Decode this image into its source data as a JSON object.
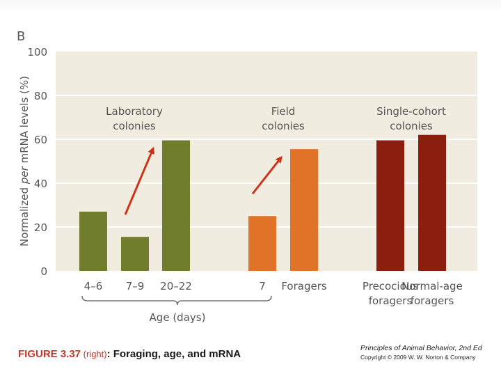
{
  "chart_data": {
    "type": "bar",
    "panel_label": "B",
    "ylabel_prefix": "Normalized ",
    "ylabel_em": "per",
    "ylabel_suffix": " mRNA levels (%)",
    "xlabel": "Age (days)",
    "ylim": [
      0,
      100
    ],
    "yticks": [
      "0",
      "20",
      "40",
      "60",
      "80",
      "100"
    ],
    "grid": true,
    "groups": [
      {
        "label_lines": [
          "Laboratory",
          "colonies"
        ],
        "bar_ids": [
          "b1",
          "b2",
          "b3"
        ]
      },
      {
        "label_lines": [
          "Field",
          "colonies"
        ],
        "bar_ids": [
          "b4",
          "b5"
        ]
      },
      {
        "label_lines": [
          "Single-cohort",
          "colonies"
        ],
        "bar_ids": [
          "b6",
          "b7"
        ]
      }
    ],
    "bars": [
      {
        "id": "b1",
        "category_lines": [
          "4–6"
        ],
        "value": 27,
        "color": "#6f7d2c"
      },
      {
        "id": "b2",
        "category_lines": [
          "7–9"
        ],
        "value": 15.5,
        "color": "#6f7d2c"
      },
      {
        "id": "b3",
        "category_lines": [
          "20–22"
        ],
        "value": 59.5,
        "color": "#6f7d2c"
      },
      {
        "id": "b4",
        "category_lines": [
          "7"
        ],
        "value": 25,
        "color": "#e07328"
      },
      {
        "id": "b5",
        "category_lines": [
          "Foragers"
        ],
        "value": 55.5,
        "color": "#e07328"
      },
      {
        "id": "b6",
        "category_lines": [
          "Precocious",
          "foragers"
        ],
        "value": 59.5,
        "color": "#8b1e0e"
      },
      {
        "id": "b7",
        "category_lines": [
          "Normal-age",
          "foragers"
        ],
        "value": 62,
        "color": "#8b1e0e"
      }
    ],
    "annotations": [
      {
        "type": "arrow",
        "from_bar": "b2",
        "to_bar": "b3"
      },
      {
        "type": "arrow",
        "from_bar": "b4",
        "to_bar": "b5"
      }
    ],
    "colors": {
      "plot_bg": "#f1ece0",
      "grid": "#ffffff",
      "arrow": "#cc3318",
      "text": "#555555"
    }
  },
  "caption": {
    "figure": "FIGURE 3.37",
    "sub": " (right)",
    "title": ": Foraging, age, and mRNA"
  },
  "credit": {
    "book": "Principles of Animal Behavior, 2nd Ed",
    "copyright": "Copyright © 2009 W. W. Norton & Company"
  }
}
